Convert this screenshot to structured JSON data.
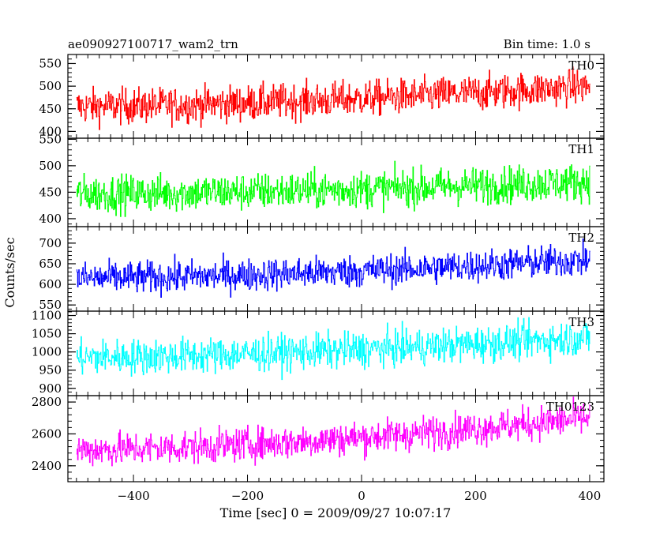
{
  "chart_data": {
    "type": "line",
    "title": "ae090927100717_wam2_trn",
    "subtitle": "Bin time: 1.0 s",
    "xlabel": "Time [sec] 0 = 2009/09/27 10:07:17",
    "ylabel": "Counts/sec",
    "xlim": [
      -515,
      425
    ],
    "x_ticks": [
      -400,
      -200,
      0,
      200,
      400
    ],
    "x_range": [
      -500,
      400
    ],
    "panels": [
      {
        "name": "TH0",
        "color": "#ff0000",
        "ylim": [
          385,
          570
        ],
        "y_ticks": [
          400,
          450,
          500,
          550
        ],
        "baseline_start": 455,
        "baseline_end": 500,
        "noise": 28
      },
      {
        "name": "TH1",
        "color": "#00ff00",
        "ylim": [
          385,
          552
        ],
        "y_ticks": [
          400,
          450,
          500,
          550
        ],
        "baseline_start": 447,
        "baseline_end": 470,
        "noise": 25
      },
      {
        "name": "TH2",
        "color": "#0000ff",
        "ylim": [
          535,
          740
        ],
        "y_ticks": [
          550,
          600,
          650,
          700
        ],
        "baseline_start": 615,
        "baseline_end": 660,
        "noise": 28
      },
      {
        "name": "TH3",
        "color": "#00ffff",
        "ylim": [
          880,
          1112
        ],
        "y_ticks": [
          900,
          950,
          1000,
          1050,
          1100
        ],
        "baseline_start": 985,
        "baseline_end": 1040,
        "noise": 35
      },
      {
        "name": "TH0123",
        "color": "#ff00ff",
        "ylim": [
          2300,
          2840
        ],
        "y_ticks": [
          2400,
          2600,
          2800
        ],
        "baseline_start": 2500,
        "baseline_end": 2700,
        "noise": 75
      }
    ]
  }
}
